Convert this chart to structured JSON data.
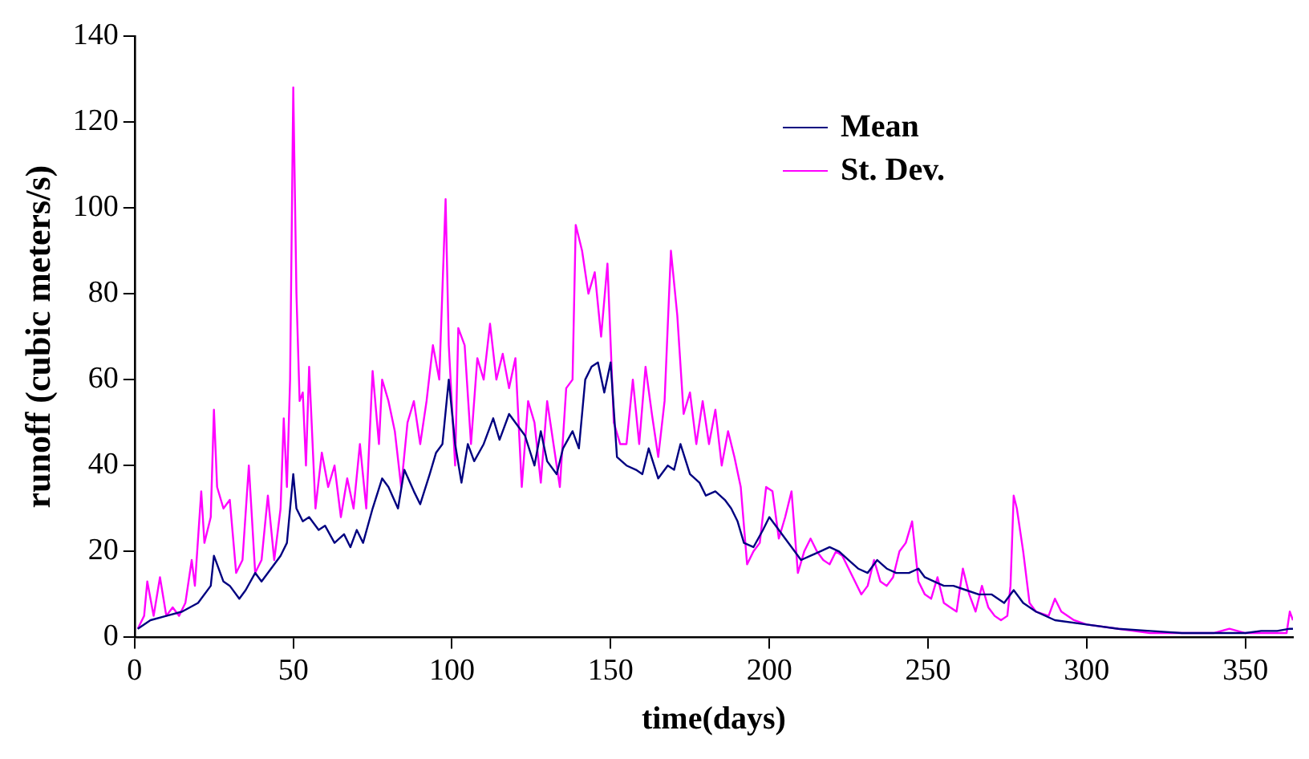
{
  "chart_data": {
    "type": "line",
    "xlabel": "time(days)",
    "ylabel": "runoff (cubic meters/s)",
    "xlim": [
      0,
      365
    ],
    "xticks": [
      0,
      50,
      100,
      150,
      200,
      250,
      300,
      350
    ],
    "ylim": [
      0,
      140
    ],
    "yticks": [
      0,
      20,
      40,
      60,
      80,
      100,
      120,
      140
    ],
    "grid": false,
    "legend": "top right",
    "marker": "none",
    "line_style": "solid",
    "series": [
      {
        "name": "Mean",
        "color": "#000080",
        "x": [
          1,
          5,
          10,
          15,
          20,
          24,
          25,
          28,
          30,
          33,
          35,
          38,
          40,
          43,
          46,
          48,
          50,
          51,
          53,
          55,
          58,
          60,
          63,
          66,
          68,
          70,
          72,
          75,
          78,
          80,
          83,
          85,
          88,
          90,
          93,
          95,
          97,
          99,
          101,
          103,
          105,
          107,
          110,
          113,
          115,
          118,
          120,
          123,
          126,
          128,
          130,
          133,
          135,
          138,
          140,
          142,
          144,
          146,
          148,
          150,
          152,
          155,
          158,
          160,
          162,
          165,
          168,
          170,
          172,
          175,
          178,
          180,
          183,
          186,
          188,
          190,
          192,
          195,
          198,
          200,
          203,
          205,
          208,
          210,
          213,
          216,
          219,
          222,
          225,
          228,
          231,
          234,
          237,
          240,
          244,
          247,
          249,
          252,
          255,
          258,
          262,
          266,
          270,
          274,
          277,
          280,
          284,
          290,
          300,
          310,
          320,
          330,
          340,
          350,
          355,
          360,
          364,
          365
        ],
        "values": [
          2,
          4,
          5,
          6,
          8,
          12,
          19,
          13,
          12,
          9,
          11,
          15,
          13,
          16,
          19,
          22,
          38,
          30,
          27,
          28,
          25,
          26,
          22,
          24,
          21,
          25,
          22,
          30,
          37,
          35,
          30,
          39,
          34,
          31,
          38,
          43,
          45,
          60,
          45,
          36,
          45,
          41,
          45,
          51,
          46,
          52,
          50,
          47,
          40,
          48,
          41,
          38,
          44,
          48,
          44,
          60,
          63,
          64,
          57,
          64,
          42,
          40,
          39,
          38,
          44,
          37,
          40,
          39,
          45,
          38,
          36,
          33,
          34,
          32,
          30,
          27,
          22,
          21,
          25,
          28,
          25,
          23,
          20,
          18,
          19,
          20,
          21,
          20,
          18,
          16,
          15,
          18,
          16,
          15,
          15,
          16,
          14,
          13,
          12,
          12,
          11,
          10,
          10,
          8,
          11,
          8,
          6,
          4,
          3,
          2,
          1.5,
          1,
          1,
          1,
          1.5,
          1.5,
          2,
          2
        ]
      },
      {
        "name": "St. Dev.",
        "color": "#ff00ff",
        "x": [
          1,
          3,
          4,
          6,
          8,
          10,
          12,
          14,
          16,
          18,
          19,
          21,
          22,
          24,
          25,
          26,
          28,
          30,
          32,
          34,
          36,
          38,
          40,
          42,
          44,
          46,
          47,
          48,
          49,
          50,
          51,
          52,
          53,
          54,
          55,
          57,
          59,
          61,
          63,
          65,
          67,
          69,
          71,
          73,
          75,
          77,
          78,
          80,
          82,
          84,
          86,
          88,
          90,
          92,
          94,
          96,
          98,
          99,
          101,
          102,
          104,
          106,
          108,
          110,
          112,
          114,
          116,
          118,
          120,
          122,
          124,
          126,
          128,
          130,
          132,
          134,
          136,
          138,
          139,
          141,
          143,
          145,
          147,
          149,
          151,
          153,
          155,
          157,
          159,
          161,
          163,
          165,
          167,
          169,
          171,
          173,
          175,
          177,
          179,
          181,
          183,
          185,
          187,
          189,
          191,
          193,
          195,
          197,
          199,
          201,
          203,
          205,
          207,
          209,
          211,
          213,
          215,
          217,
          219,
          221,
          223,
          225,
          227,
          229,
          231,
          233,
          235,
          237,
          239,
          241,
          243,
          245,
          247,
          249,
          251,
          253,
          255,
          257,
          259,
          261,
          263,
          265,
          267,
          269,
          271,
          273,
          275,
          276,
          277,
          278,
          280,
          282,
          284,
          288,
          290,
          292,
          296,
          300,
          310,
          320,
          330,
          340,
          345,
          350,
          355,
          360,
          363,
          364,
          365
        ],
        "values": [
          2,
          5,
          13,
          5,
          14,
          5,
          7,
          5,
          8,
          18,
          12,
          34,
          22,
          28,
          53,
          35,
          30,
          32,
          15,
          18,
          40,
          15,
          18,
          33,
          18,
          30,
          51,
          35,
          60,
          128,
          80,
          55,
          57,
          40,
          63,
          30,
          43,
          35,
          40,
          28,
          37,
          30,
          45,
          30,
          62,
          45,
          60,
          55,
          48,
          35,
          50,
          55,
          45,
          55,
          68,
          60,
          102,
          68,
          40,
          72,
          68,
          45,
          65,
          60,
          73,
          60,
          66,
          58,
          65,
          35,
          55,
          50,
          36,
          55,
          45,
          35,
          58,
          60,
          96,
          90,
          80,
          85,
          70,
          87,
          50,
          45,
          45,
          60,
          45,
          63,
          52,
          42,
          55,
          90,
          75,
          52,
          57,
          45,
          55,
          45,
          53,
          40,
          48,
          42,
          35,
          17,
          20,
          22,
          35,
          34,
          23,
          28,
          34,
          15,
          20,
          23,
          20,
          18,
          17,
          20,
          19,
          16,
          13,
          10,
          12,
          18,
          13,
          12,
          14,
          20,
          22,
          27,
          13,
          10,
          9,
          14,
          8,
          7,
          6,
          16,
          10,
          6,
          12,
          7,
          5,
          4,
          5,
          12,
          33,
          30,
          20,
          8,
          6,
          5,
          9,
          6,
          4,
          3,
          2,
          1,
          1,
          1,
          2,
          1,
          1,
          1,
          1,
          6,
          4
        ]
      }
    ]
  }
}
